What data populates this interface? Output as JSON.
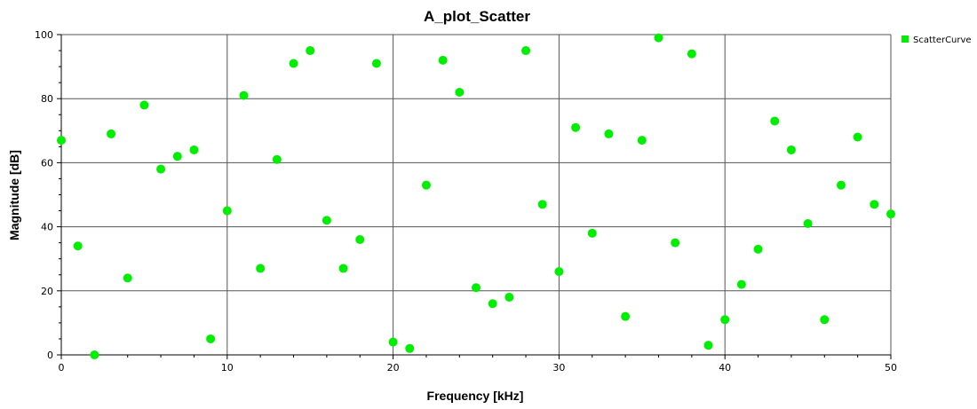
{
  "chart_data": {
    "type": "scatter",
    "title": "A_plot_Scatter",
    "xlabel": "Frequency [kHz]",
    "ylabel": "Magnitude [dB]",
    "xlim": [
      0,
      50
    ],
    "ylim": [
      0,
      100
    ],
    "xticks": [
      0,
      10,
      20,
      30,
      40,
      50
    ],
    "yticks": [
      0,
      20,
      40,
      60,
      80,
      100
    ],
    "grid": true,
    "legend_position": "top-right",
    "series": [
      {
        "name": "ScatterCurve",
        "color": "#00ee00",
        "x": [
          0,
          1,
          2,
          3,
          4,
          5,
          6,
          7,
          8,
          9,
          10,
          11,
          12,
          13,
          14,
          15,
          16,
          17,
          18,
          19,
          20,
          21,
          22,
          23,
          24,
          25,
          26,
          27,
          28,
          29,
          30,
          31,
          32,
          33,
          34,
          35,
          36,
          37,
          38,
          39,
          40,
          41,
          42,
          43,
          44,
          45,
          46,
          47,
          48,
          49,
          50
        ],
        "y": [
          67,
          34,
          0,
          69,
          24,
          78,
          58,
          62,
          64,
          5,
          45,
          81,
          27,
          61,
          91,
          95,
          42,
          27,
          36,
          91,
          4,
          2,
          53,
          92,
          82,
          21,
          16,
          18,
          95,
          47,
          26,
          71,
          38,
          69,
          12,
          67,
          99,
          35,
          94,
          3,
          11,
          22,
          33,
          73,
          64,
          41,
          11,
          53,
          68,
          47,
          44
        ]
      }
    ]
  }
}
